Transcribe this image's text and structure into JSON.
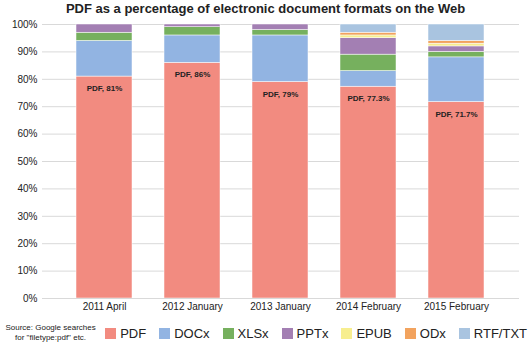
{
  "chart_data": {
    "type": "bar",
    "stacked": true,
    "title": "PDF as a percentage of electronic document formats on the Web",
    "caption": "Source: Google searches for \"filetype:pdf\" etc.",
    "categories": [
      "2011 April",
      "2012 January",
      "2013 January",
      "2014 February",
      "2015 February"
    ],
    "series": [
      {
        "name": "PDF",
        "color": "#f28b80",
        "values": [
          81,
          86,
          79,
          77.3,
          71.7
        ],
        "value_labels": [
          "PDF, 81%",
          "PDF, 86%",
          "PDF, 79%",
          "PDF, 77.3%",
          "PDF, 71.7%"
        ]
      },
      {
        "name": "DOCx",
        "color": "#92b4e2",
        "values": [
          13,
          10,
          17,
          5.7,
          16.3
        ]
      },
      {
        "name": "XLSx",
        "color": "#76b05e",
        "values": [
          3,
          3,
          2,
          6,
          2
        ]
      },
      {
        "name": "PPTx",
        "color": "#a37fb3",
        "values": [
          3,
          1,
          2,
          6,
          2
        ]
      },
      {
        "name": "EPUB",
        "color": "#f7ee8f",
        "values": [
          0,
          0,
          0,
          1,
          1
        ]
      },
      {
        "name": "ODx",
        "color": "#f2a35e",
        "values": [
          0,
          0,
          0,
          1,
          1
        ]
      },
      {
        "name": "RTF/TXT",
        "color": "#a9c4e0",
        "values": [
          0,
          0,
          0,
          3,
          6
        ]
      }
    ],
    "ylim": [
      0,
      100
    ],
    "yticks": [
      {
        "value": 0,
        "label": "0%"
      },
      {
        "value": 10,
        "label": "10%"
      },
      {
        "value": 20,
        "label": "20%"
      },
      {
        "value": 30,
        "label": "30%"
      },
      {
        "value": 40,
        "label": "40%"
      },
      {
        "value": 50,
        "label": "50%"
      },
      {
        "value": 60,
        "label": "60%"
      },
      {
        "value": 70,
        "label": "70%"
      },
      {
        "value": 80,
        "label": "80%"
      },
      {
        "value": 90,
        "label": "90%"
      },
      {
        "value": 100,
        "label": "100%"
      }
    ],
    "grid": true,
    "data_labels": true,
    "legend": "bottom"
  }
}
